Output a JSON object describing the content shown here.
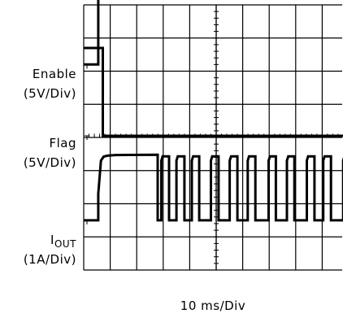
{
  "chart_data": {
    "type": "line",
    "title": "",
    "xlabel": "10 ms/Div",
    "divisions": {
      "x": 10,
      "y": 8
    },
    "xlim": [
      0,
      100
    ],
    "grid": true,
    "series": [
      {
        "label_main": "Enable",
        "label_sub": "(5V/Div)",
        "scale": "5V/Div",
        "ground_div": 6.2,
        "points": [
          [
            0,
            0
          ],
          [
            5.5,
            0
          ],
          [
            5.5,
            3.5
          ],
          [
            100,
            3.5
          ]
        ]
      },
      {
        "label_main": "Flag",
        "label_sub": "(5V/Div)",
        "scale": "5V/Div",
        "ground_div": 4.05,
        "points": [
          [
            0,
            2.65
          ],
          [
            7.2,
            2.65
          ],
          [
            7.2,
            0
          ],
          [
            100,
            0
          ]
        ]
      },
      {
        "label_main": "I",
        "label_subscript": "OUT",
        "label_sub": "(1A/Div)",
        "scale": "1A/Div",
        "ground_div": 1.5,
        "points": [
          [
            0,
            0
          ],
          [
            5.5,
            0
          ],
          [
            5.5,
            0.8
          ],
          [
            6.5,
            1.8
          ],
          [
            7.5,
            1.92
          ],
          [
            9,
            1.95
          ],
          [
            12,
            1.97
          ],
          [
            27.9,
            1.98
          ],
          [
            27.9,
            0
          ],
          [
            29.3,
            0
          ],
          [
            29.3,
            1.8
          ],
          [
            29.8,
            1.93
          ],
          [
            32.2,
            1.93
          ],
          [
            32.2,
            0
          ],
          [
            35,
            0
          ],
          [
            35,
            1.8
          ],
          [
            35.5,
            1.93
          ],
          [
            38,
            1.93
          ],
          [
            38,
            0
          ],
          [
            40.8,
            0
          ],
          [
            40.8,
            1.8
          ],
          [
            41.3,
            1.93
          ],
          [
            43.6,
            1.93
          ],
          [
            43.6,
            0
          ],
          [
            48,
            0
          ],
          [
            48,
            1.8
          ],
          [
            48.5,
            1.93
          ],
          [
            50.9,
            1.93
          ],
          [
            50.9,
            0
          ],
          [
            55.1,
            0
          ],
          [
            55.1,
            1.8
          ],
          [
            55.6,
            1.93
          ],
          [
            58,
            1.93
          ],
          [
            58,
            0
          ],
          [
            61.9,
            0
          ],
          [
            61.9,
            1.8
          ],
          [
            62.4,
            1.93
          ],
          [
            64.8,
            1.93
          ],
          [
            64.8,
            0
          ],
          [
            69.8,
            0
          ],
          [
            69.8,
            1.8
          ],
          [
            70.3,
            1.93
          ],
          [
            72.5,
            1.93
          ],
          [
            72.5,
            0
          ],
          [
            76.7,
            0
          ],
          [
            76.7,
            1.8
          ],
          [
            77.2,
            1.93
          ],
          [
            79.5,
            1.93
          ],
          [
            79.5,
            0
          ],
          [
            84.2,
            0
          ],
          [
            84.2,
            1.8
          ],
          [
            84.7,
            1.93
          ],
          [
            87.1,
            1.93
          ],
          [
            87.1,
            0
          ],
          [
            90.4,
            0
          ],
          [
            90.4,
            1.8
          ],
          [
            90.9,
            1.93
          ],
          [
            93.3,
            1.93
          ],
          [
            93.3,
            0
          ],
          [
            97.9,
            0
          ],
          [
            97.9,
            1.8
          ],
          [
            98.4,
            1.93
          ],
          [
            100,
            1.93
          ]
        ]
      }
    ]
  }
}
